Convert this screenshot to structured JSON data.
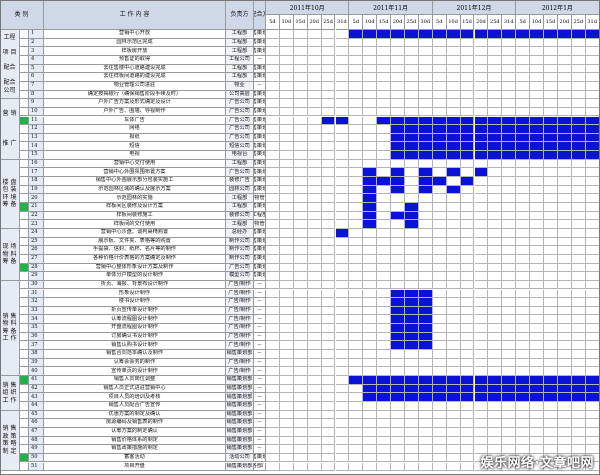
{
  "headers": {
    "category": "类 别",
    "task": "工 作 内 容",
    "responsible": "负责方",
    "cooperator": "配合方"
  },
  "months": [
    "2011年10月",
    "2011年11月",
    "2011年12月",
    "2012年1月"
  ],
  "weeks": [
    "5d",
    "10d",
    "15d",
    "20d",
    "25d",
    "31d",
    "5d",
    "10d",
    "15d",
    "20d",
    "25d",
    "30d",
    "5d",
    "10d",
    "15d",
    "20d",
    "25d",
    "31d",
    "5d",
    "10d",
    "15d",
    "20d",
    "25d",
    "31d"
  ],
  "categories": [
    {
      "label": "工程\n\n项 目\n\n配合\n\n配合\n公司",
      "start": 1,
      "end": 8
    },
    {
      "label": "营 销\n\n\n\n推 广",
      "start": 9,
      "end": 15
    },
    {
      "label": "楼 盘\n包 装\n环 境\n筹 备",
      "start": 16,
      "end": 23
    },
    {
      "label": "现 场\n物 料\n筹 备",
      "start": 24,
      "end": 29
    },
    {
      "label": "销 售\n物 料\n筹 备\n工 作",
      "start": 30,
      "end": 40
    },
    {
      "label": "销 售\n组 织\n工 作",
      "start": 41,
      "end": 44
    },
    {
      "label": "销 售\n政 策\n策 略\n制 定",
      "start": 45,
      "end": 51
    }
  ],
  "rows": [
    {
      "n": "1",
      "task": "营销中心开放",
      "resp": "工程部",
      "coop": "销售策划部",
      "mk": false,
      "s": [
        6,
        7,
        8,
        9,
        10,
        11,
        12,
        13,
        14,
        15,
        16,
        17,
        18,
        19,
        20,
        21,
        22,
        23
      ]
    },
    {
      "n": "2",
      "task": "园林示范区完成",
      "resp": "工程部",
      "coop": "销售策划部",
      "mk": false,
      "s": []
    },
    {
      "n": "3",
      "task": "样板房开放",
      "resp": "工程部",
      "coop": "销售策划部",
      "mk": false,
      "s": []
    },
    {
      "n": "4",
      "task": "预售证的取得",
      "resp": "工程公司",
      "coop": "－",
      "mk": false,
      "s": []
    },
    {
      "n": "5",
      "task": "去往售楼中心道路建设完成",
      "resp": "工程部",
      "coop": "销售策划部",
      "mk": false,
      "s": []
    },
    {
      "n": "6",
      "task": "去往样板间道路的建设完成",
      "resp": "工程部",
      "coop": "销售策划部",
      "mk": false,
      "s": []
    },
    {
      "n": "7",
      "task": "物业管理公司进驻",
      "resp": "物业",
      "coop": "－",
      "mk": false,
      "s": []
    },
    {
      "n": "8",
      "task": "确定按揭银行（确保销售阶段手续及时）",
      "resp": "公司高层",
      "coop": "销售策划部",
      "mk": false,
      "s": []
    },
    {
      "n": "9",
      "task": "户外广告方案及形式确定及设计",
      "resp": "广告公司",
      "coop": "销售策划部",
      "mk": false,
      "s": []
    },
    {
      "n": "10",
      "task": "户外广告、围墙、导视制作",
      "resp": "广告公司",
      "coop": "销售策划部",
      "mk": false,
      "s": []
    },
    {
      "n": "11",
      "task": "车体广告",
      "resp": "广告公司",
      "coop": "销售策划部",
      "mk": true,
      "s": [
        4,
        5,
        8,
        9,
        10,
        11,
        12,
        13,
        14,
        15,
        16,
        17,
        18,
        19,
        20,
        21,
        22,
        23
      ]
    },
    {
      "n": "12",
      "task": "网络",
      "resp": "广告公司",
      "coop": "销售策划部",
      "mk": false,
      "s": [
        9,
        10,
        11,
        12,
        13,
        14,
        15,
        16,
        17,
        18,
        19,
        20,
        21,
        22,
        23
      ]
    },
    {
      "n": "13",
      "task": "报纸",
      "resp": "广告公司",
      "coop": "销售策划部",
      "mk": false,
      "s": [
        9,
        10,
        11,
        12,
        13,
        14,
        15,
        16,
        17,
        18,
        19,
        20,
        21,
        22,
        23
      ]
    },
    {
      "n": "14",
      "task": "短信",
      "resp": "短信公司",
      "coop": "销售策划部",
      "mk": false,
      "s": [
        9,
        10,
        11,
        12,
        13,
        14,
        15,
        16,
        17,
        18,
        19,
        20,
        21,
        22,
        23
      ]
    },
    {
      "n": "15",
      "task": "电视",
      "resp": "电视台",
      "coop": "销售策划部",
      "mk": false,
      "s": [
        9,
        10,
        11,
        12,
        13,
        14,
        15,
        16,
        17,
        18,
        19,
        20,
        21,
        22,
        23
      ]
    },
    {
      "n": "16",
      "task": "营销中心交付使用",
      "resp": "工程部",
      "coop": "销售策划部",
      "mk": false,
      "s": []
    },
    {
      "n": "17",
      "task": "营销中心外围氛围布置方案",
      "resp": "广告公司",
      "coop": "销售策划部",
      "mk": false,
      "s": [
        7,
        9,
        11,
        13,
        15
      ]
    },
    {
      "n": "18",
      "task": "销售中心外围展示部分包装实施工",
      "resp": "装修广告",
      "coop": "销售策划部",
      "mk": false,
      "s": [
        7,
        8,
        9,
        11,
        12,
        14
      ]
    },
    {
      "n": "19",
      "task": "示范园林区域的确认及展示方案",
      "resp": "园林公司",
      "coop": "销售策划部",
      "mk": false,
      "s": [
        7,
        9,
        11,
        13
      ]
    },
    {
      "n": "20",
      "task": "示范园林的实施",
      "resp": "工程部",
      "coop": "物管",
      "mk": false,
      "s": [
        7
      ]
    },
    {
      "n": "21",
      "task": "样板间区装修及设计方案",
      "resp": "工程部",
      "coop": "销售策划部",
      "mk": true,
      "s": [
        7,
        10
      ]
    },
    {
      "n": "22",
      "task": "样板间装修施工",
      "resp": "装修公司",
      "coop": "工程部",
      "mk": false,
      "s": [
        7,
        9,
        10
      ]
    },
    {
      "n": "23",
      "task": "样板间的交付使用",
      "resp": "工程部",
      "coop": "物管",
      "mk": false,
      "s": [
        7,
        10
      ]
    },
    {
      "n": "24",
      "task": "营销中心沙盘、谈判桌椅购置",
      "resp": "总经办",
      "coop": "销售策划部",
      "mk": false,
      "s": [
        5
      ]
    },
    {
      "n": "25",
      "task": "展示板、文件夹、表格等的购置",
      "resp": "制作公司",
      "coop": "销售策划部",
      "mk": false,
      "s": []
    },
    {
      "n": "26",
      "task": "手提袋、信封、纸杯、名片等的制作",
      "resp": "制作公司",
      "coop": "销售策划部",
      "mk": false,
      "s": []
    },
    {
      "n": "27",
      "task": "各种价格计价表格的方案确定及制作",
      "resp": "制作公司",
      "coop": "销售策划部",
      "mk": false,
      "s": []
    },
    {
      "n": "28",
      "task": "营销中心整体形象设计方案及制作",
      "resp": "广告公司",
      "coop": "销售策划部",
      "mk": true,
      "s": []
    },
    {
      "n": "29",
      "task": "单体分户模型的设计制作",
      "resp": "模型公司",
      "coop": "销售策划部",
      "mk": false,
      "s": []
    },
    {
      "n": "30",
      "task": "折页、海报、背景布设计制作",
      "resp": "广告/制作",
      "coop": "－",
      "mk": false,
      "s": []
    },
    {
      "n": "31",
      "task": "形象设计制作",
      "resp": "广告/制作",
      "coop": "－",
      "mk": false,
      "s": [
        9,
        10,
        11
      ]
    },
    {
      "n": "32",
      "task": "楼书设计制作",
      "resp": "广告/制作",
      "coop": "－",
      "mk": false,
      "s": [
        9,
        10,
        11
      ]
    },
    {
      "n": "33",
      "task": "折页宣传单设计制作",
      "resp": "广告/制作",
      "coop": "－",
      "mk": false,
      "s": [
        9,
        10,
        11
      ]
    },
    {
      "n": "34",
      "task": "认筹流程图设计制作",
      "resp": "广告/制作",
      "coop": "－",
      "mk": false,
      "s": [
        9,
        10,
        11
      ]
    },
    {
      "n": "35",
      "task": "开盘流程图设计制作",
      "resp": "广告/制作",
      "coop": "－",
      "mk": false,
      "s": [
        9,
        10,
        11
      ]
    },
    {
      "n": "36",
      "task": "订房确认书设计制作",
      "resp": "广告/制作",
      "coop": "－",
      "mk": false,
      "s": [
        9,
        10,
        11
      ]
    },
    {
      "n": "37",
      "task": "销售认购书设计制作",
      "resp": "广告/制作",
      "coop": "－",
      "mk": false,
      "s": [
        9,
        10,
        11
      ]
    },
    {
      "n": "38",
      "task": "销售合同范本确认及制作",
      "resp": "销售策划部",
      "coop": "－",
      "mk": false,
      "s": []
    },
    {
      "n": "39",
      "task": "认筹会会务的制作",
      "resp": "广告/制作",
      "coop": "－",
      "mk": false,
      "s": []
    },
    {
      "n": "40",
      "task": "宣传单页的设计制作",
      "resp": "广告/制作",
      "coop": "－",
      "mk": false,
      "s": []
    },
    {
      "n": "41",
      "task": "销售人员岗位调整",
      "resp": "销售策划部",
      "coop": "－",
      "mk": true,
      "s": [
        6,
        7,
        8,
        9,
        10,
        11,
        12,
        13,
        14,
        15,
        16,
        17,
        18,
        19,
        20,
        21,
        22,
        23
      ]
    },
    {
      "n": "42",
      "task": "销售人员正式进驻营销中心",
      "resp": "销售策划部",
      "coop": "－",
      "mk": false,
      "s": [
        7,
        8,
        9,
        10,
        11,
        12,
        13,
        14,
        15,
        16,
        17,
        18,
        19,
        20,
        21,
        22,
        23
      ]
    },
    {
      "n": "43",
      "task": "项目人员的培训及考核",
      "resp": "销售策划部",
      "coop": "－",
      "mk": false,
      "s": [
        7,
        8,
        9,
        10,
        11,
        12,
        13,
        14,
        15,
        16,
        17,
        18,
        19,
        20,
        21,
        22,
        23
      ]
    },
    {
      "n": "44",
      "task": "销售人员配合广告宣传",
      "resp": "销售策划部",
      "coop": "－",
      "mk": false,
      "s": []
    },
    {
      "n": "45",
      "task": "优惠方案的制定及确认",
      "resp": "销售策划部",
      "coop": "－",
      "mk": false,
      "s": []
    },
    {
      "n": "46",
      "task": "房源编码及销售表的制作",
      "resp": "销售策划部",
      "coop": "－",
      "mk": false,
      "s": []
    },
    {
      "n": "47",
      "task": "认筹方案的制定确认",
      "resp": "销售策划部",
      "coop": "－",
      "mk": false,
      "s": []
    },
    {
      "n": "48",
      "task": "销售价格体系的制定",
      "resp": "销售策划部",
      "coop": "－",
      "mk": false,
      "s": []
    },
    {
      "n": "49",
      "task": "销售政策措施的制定",
      "resp": "销售策划部",
      "coop": "－",
      "mk": false,
      "s": []
    },
    {
      "n": "50",
      "task": "蓄客活动",
      "resp": "活动公司",
      "coop": "销售策划部",
      "mk": true,
      "s": []
    },
    {
      "n": "51",
      "task": "项目开盘",
      "resp": "销售策划部",
      "coop": "各部门",
      "mk": false,
      "s": []
    }
  ],
  "colors": {
    "bar": "#0a12d6",
    "marker": "#1fb34a",
    "header": "#cfd8e6"
  },
  "watermark": "娱乐网络·文章吧网"
}
